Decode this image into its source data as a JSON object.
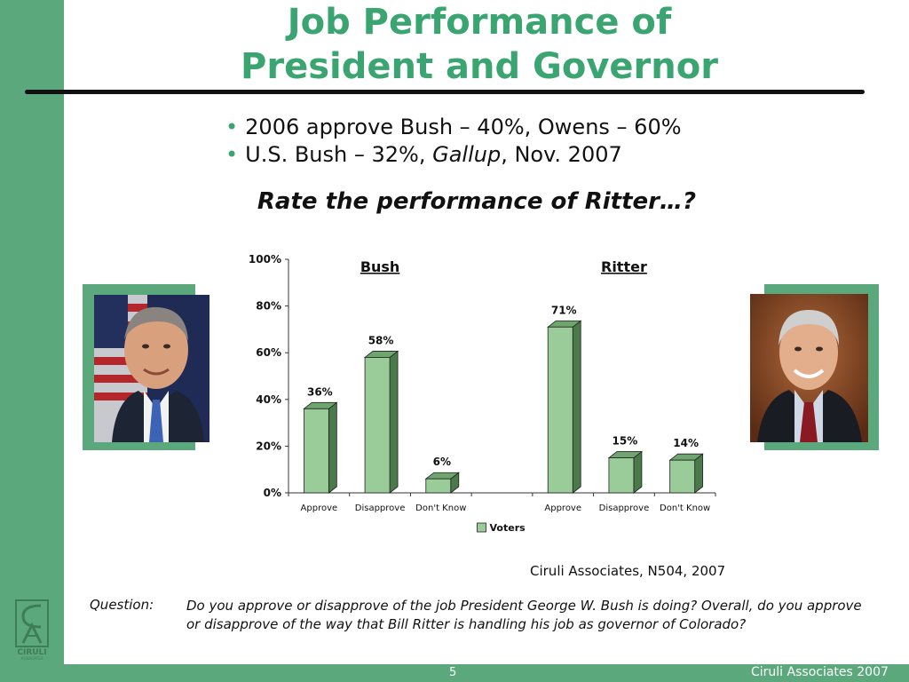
{
  "title": {
    "line1": "Job Performance of",
    "line2": "President and Governor"
  },
  "bullets": [
    {
      "text": "2006 approve Bush – 40%, Owens – 60%"
    },
    {
      "pre": "U.S. Bush – 32%, ",
      "italic": "Gallup",
      "post": ", Nov. 2007"
    }
  ],
  "question_head": "Rate the performance of Ritter…?",
  "chart_data": {
    "type": "bar",
    "ylim": [
      0,
      100
    ],
    "yticks": [
      "0%",
      "20%",
      "40%",
      "60%",
      "80%",
      "100%"
    ],
    "group_labels": [
      "Bush",
      "Ritter"
    ],
    "categories": [
      "Approve",
      "Disapprove",
      "Don't Know",
      "",
      "Approve",
      "Disapprove",
      "Don't Know"
    ],
    "series": [
      {
        "name": "Voters",
        "values": [
          36,
          58,
          6,
          null,
          71,
          15,
          14
        ]
      }
    ],
    "data_labels": [
      "36%",
      "58%",
      "6%",
      "",
      "71%",
      "15%",
      "14%"
    ],
    "legend": "bottom-center",
    "grid": false,
    "bar_color": "#99cc99",
    "bar_side_color": "#4a7a4a",
    "bar_top_color": "#6fa56f"
  },
  "source": "Ciruli Associates, N504, 2007",
  "question_label": "Question:",
  "question_text": "Do you approve or disapprove of the job President George W. Bush is doing?  Overall, do you approve or disapprove of the way that Bill Ritter is handling his job as governor of Colorado?",
  "logo_text": "CIRULI",
  "logo_sub": "ASSOCIATES",
  "page_number": "5",
  "footer": "Ciruli Associates 2007",
  "colors": {
    "accent": "#5aa87c",
    "title": "#3aa571"
  }
}
